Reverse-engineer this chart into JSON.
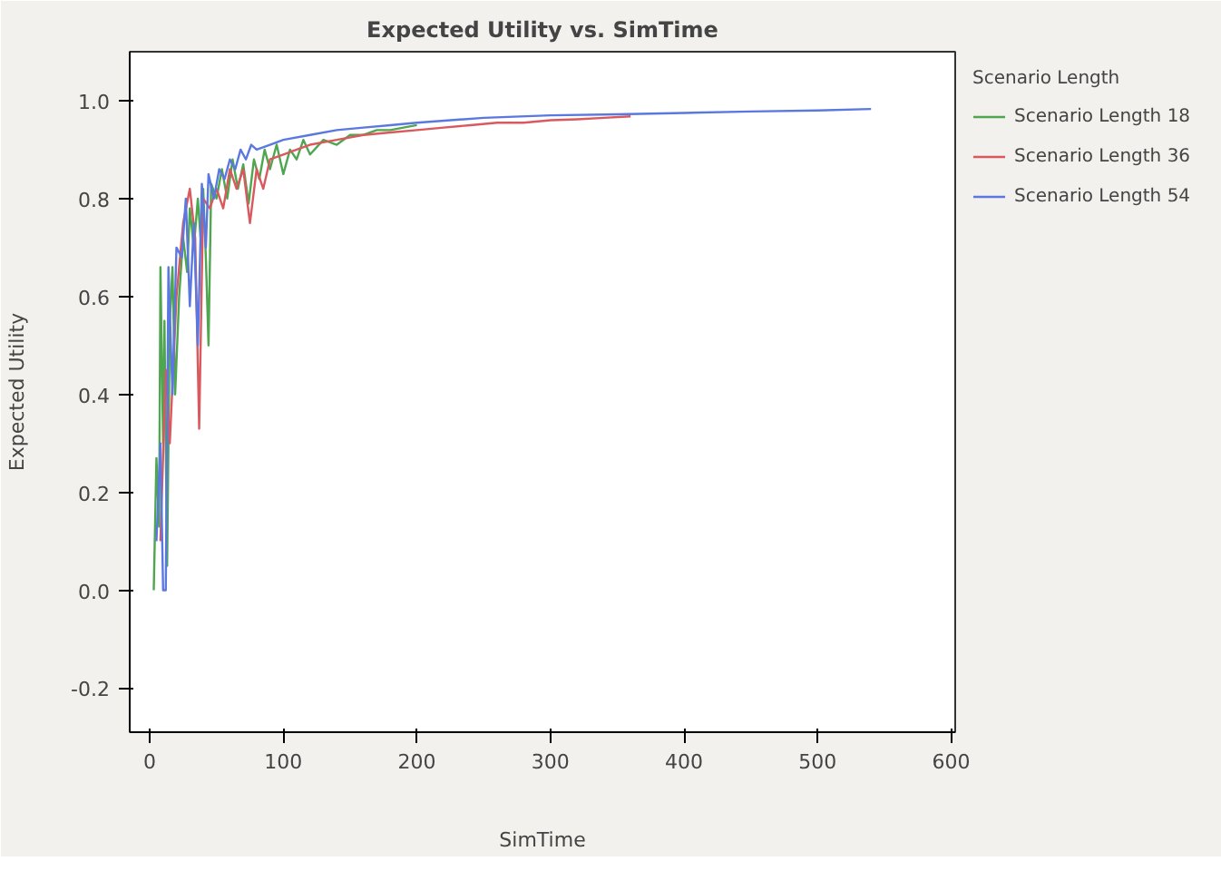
{
  "chart_data": {
    "type": "line",
    "title": "Expected Utility vs. SimTime",
    "xlabel": "SimTime",
    "ylabel": "Expected Utility",
    "legend_title": "Scenario Length",
    "legend": "top right",
    "grid": false,
    "marker": "none",
    "line_style": "solid",
    "xlim": [
      -15,
      603
    ],
    "ylim": [
      -0.29,
      1.1
    ],
    "xticks": [
      0,
      100,
      200,
      300,
      400,
      500,
      600
    ],
    "yticks": [
      {
        "value": -0.2,
        "label": "-0.2"
      },
      {
        "value": 0,
        "label": "0.0"
      },
      {
        "value": 0.2,
        "label": "0.2"
      },
      {
        "value": 0.4,
        "label": "0.4"
      },
      {
        "value": 0.6,
        "label": "0.6"
      },
      {
        "value": 0.8,
        "label": "0.8"
      },
      {
        "value": 1,
        "label": "1.0"
      }
    ],
    "series": [
      {
        "name": "Scenario Length 18",
        "color": "#4ea64e",
        "x": [
          3,
          5,
          7,
          8,
          10,
          11,
          13,
          15,
          17,
          19,
          22,
          25,
          28,
          30,
          33,
          36,
          38,
          40,
          42,
          44,
          46,
          50,
          54,
          58,
          62,
          66,
          70,
          74,
          78,
          82,
          86,
          90,
          95,
          100,
          105,
          110,
          115,
          120,
          130,
          140,
          150,
          160,
          170,
          180,
          190,
          200
        ],
        "values": [
          0.0,
          0.27,
          0.13,
          0.66,
          0.3,
          0.55,
          0.05,
          0.55,
          0.66,
          0.4,
          0.6,
          0.72,
          0.65,
          0.78,
          0.7,
          0.8,
          0.72,
          0.82,
          0.68,
          0.5,
          0.83,
          0.8,
          0.86,
          0.8,
          0.88,
          0.82,
          0.87,
          0.79,
          0.88,
          0.84,
          0.9,
          0.86,
          0.91,
          0.85,
          0.9,
          0.88,
          0.92,
          0.89,
          0.92,
          0.91,
          0.93,
          0.93,
          0.94,
          0.94,
          0.945,
          0.95
        ]
      },
      {
        "name": "Scenario Length 36",
        "color": "#d9595f",
        "x": [
          8,
          12,
          15,
          20,
          25,
          30,
          34,
          37,
          40,
          45,
          50,
          55,
          60,
          65,
          70,
          75,
          80,
          85,
          90,
          100,
          110,
          120,
          140,
          160,
          180,
          200,
          220,
          240,
          260,
          280,
          300,
          320,
          340,
          360
        ],
        "values": [
          0.1,
          0.45,
          0.3,
          0.6,
          0.75,
          0.82,
          0.72,
          0.33,
          0.8,
          0.78,
          0.82,
          0.78,
          0.86,
          0.82,
          0.86,
          0.75,
          0.86,
          0.82,
          0.88,
          0.89,
          0.9,
          0.91,
          0.92,
          0.93,
          0.935,
          0.94,
          0.945,
          0.95,
          0.955,
          0.955,
          0.96,
          0.962,
          0.965,
          0.968
        ]
      },
      {
        "name": "Scenario Length 54",
        "color": "#5a78e0",
        "x": [
          5,
          8,
          10,
          12,
          14,
          17,
          20,
          24,
          27,
          30,
          33,
          36,
          39,
          42,
          44,
          48,
          52,
          56,
          60,
          64,
          68,
          72,
          76,
          80,
          90,
          100,
          120,
          140,
          160,
          180,
          200,
          250,
          300,
          350,
          400,
          450,
          500,
          540
        ],
        "values": [
          0.1,
          0.3,
          0.0,
          0.0,
          0.66,
          0.4,
          0.7,
          0.68,
          0.8,
          0.58,
          0.75,
          0.5,
          0.83,
          0.7,
          0.85,
          0.8,
          0.86,
          0.84,
          0.88,
          0.86,
          0.9,
          0.88,
          0.91,
          0.9,
          0.91,
          0.92,
          0.93,
          0.94,
          0.945,
          0.95,
          0.955,
          0.965,
          0.97,
          0.972,
          0.975,
          0.978,
          0.98,
          0.983
        ]
      }
    ]
  }
}
